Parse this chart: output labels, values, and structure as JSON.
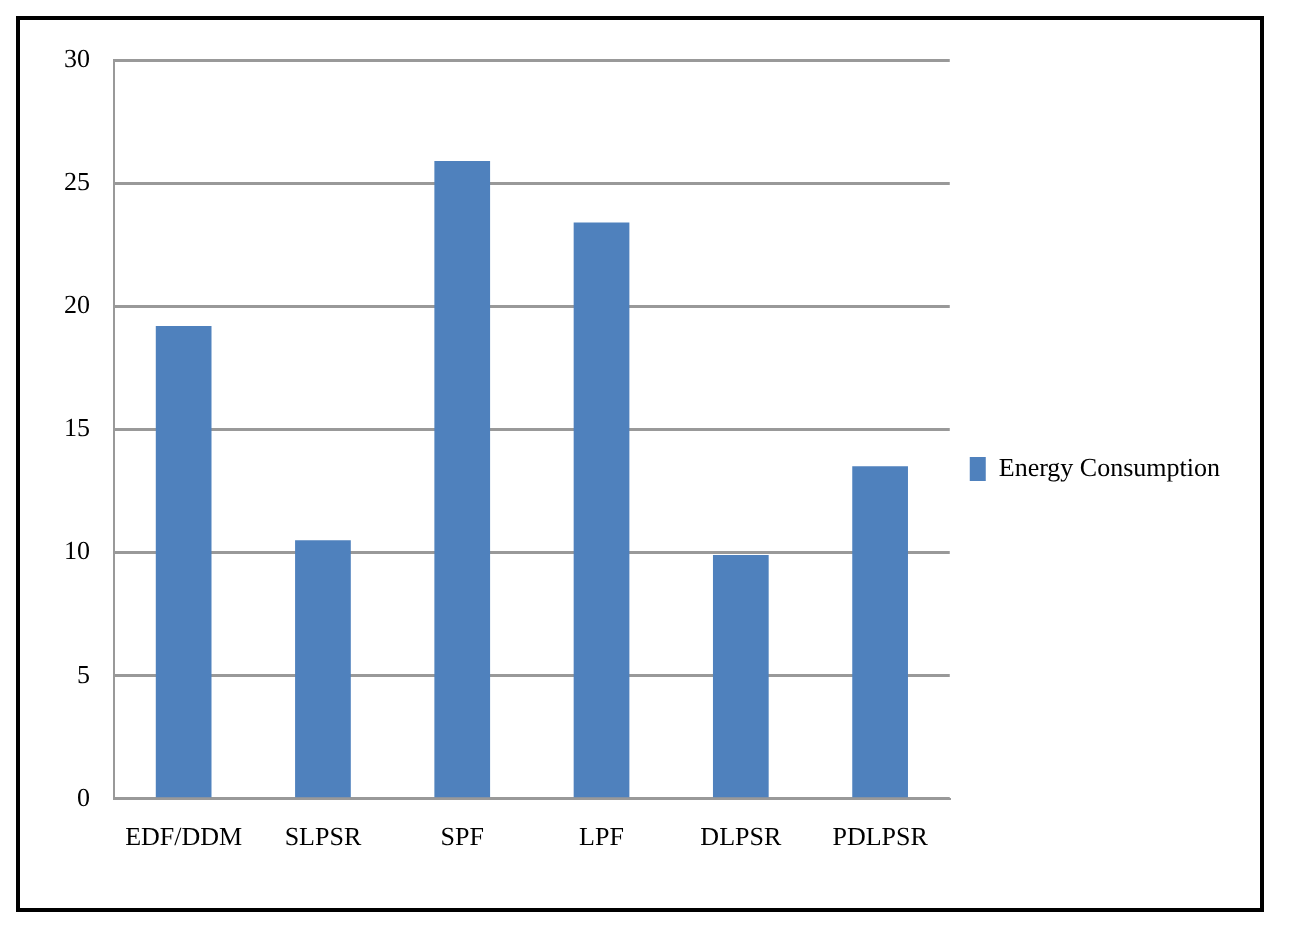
{
  "chart_data": {
    "type": "bar",
    "categories": [
      "EDF/DDM",
      "SLPSR",
      "SPF",
      "LPF",
      "DLPSR",
      "PDLPSR"
    ],
    "series": [
      {
        "name": "Energy Consumption",
        "color": "#4f81bd",
        "values": [
          19.2,
          10.5,
          25.9,
          23.4,
          9.9,
          13.5
        ]
      }
    ],
    "ylim": [
      0,
      30
    ],
    "yticks": [
      0,
      5,
      10,
      15,
      20,
      25,
      30
    ],
    "grid": "y",
    "legend": "right"
  }
}
